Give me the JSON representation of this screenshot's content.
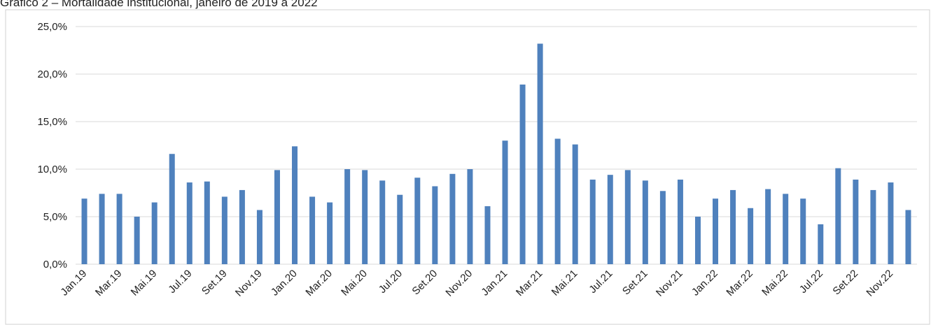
{
  "chart_data": {
    "type": "bar",
    "title": "Gráfico 2 – Mortalidade institucional, janeiro de 2019 a 2022",
    "categories": [
      "Jan.19",
      null,
      "Mar.19",
      null,
      "Mai.19",
      null,
      "Jul.19",
      null,
      "Set.19",
      null,
      "Nov.19",
      null,
      "Jan.20",
      null,
      "Mar.20",
      null,
      "Mai.20",
      null,
      "Jul.20",
      null,
      "Set.20",
      null,
      "Nov.20",
      null,
      "Jan.21",
      null,
      "Mar.21",
      null,
      "Mai.21",
      null,
      "Jul.21",
      null,
      "Set.21",
      null,
      "Nov.21",
      null,
      "Jan.22",
      null,
      "Mar.22",
      null,
      "Mai.22",
      null,
      "Jul.22",
      null,
      "Set.22",
      null,
      "Nov.22",
      null
    ],
    "values": [
      6.9,
      7.4,
      7.4,
      5.0,
      6.5,
      11.6,
      8.6,
      8.7,
      7.1,
      7.8,
      5.7,
      9.9,
      12.4,
      7.1,
      6.5,
      10.0,
      9.9,
      8.8,
      7.3,
      9.1,
      8.2,
      9.5,
      10.0,
      6.1,
      13.0,
      18.9,
      23.2,
      13.2,
      12.6,
      8.9,
      9.4,
      9.9,
      8.8,
      7.7,
      8.9,
      5.0,
      6.9,
      7.8,
      5.9,
      7.9,
      7.4,
      6.9,
      4.2,
      10.1,
      8.9,
      7.8,
      8.6,
      5.7
    ],
    "color": "#4f81bd",
    "ylim": [
      0,
      25
    ],
    "yticks": [
      {
        "value": 0,
        "label": "0,0%"
      },
      {
        "value": 5,
        "label": "5,0%"
      },
      {
        "value": 10,
        "label": "10,0%"
      },
      {
        "value": 15,
        "label": "15,0%"
      },
      {
        "value": 20,
        "label": "20,0%"
      },
      {
        "value": 25,
        "label": "25,0%"
      }
    ],
    "grid": true
  }
}
